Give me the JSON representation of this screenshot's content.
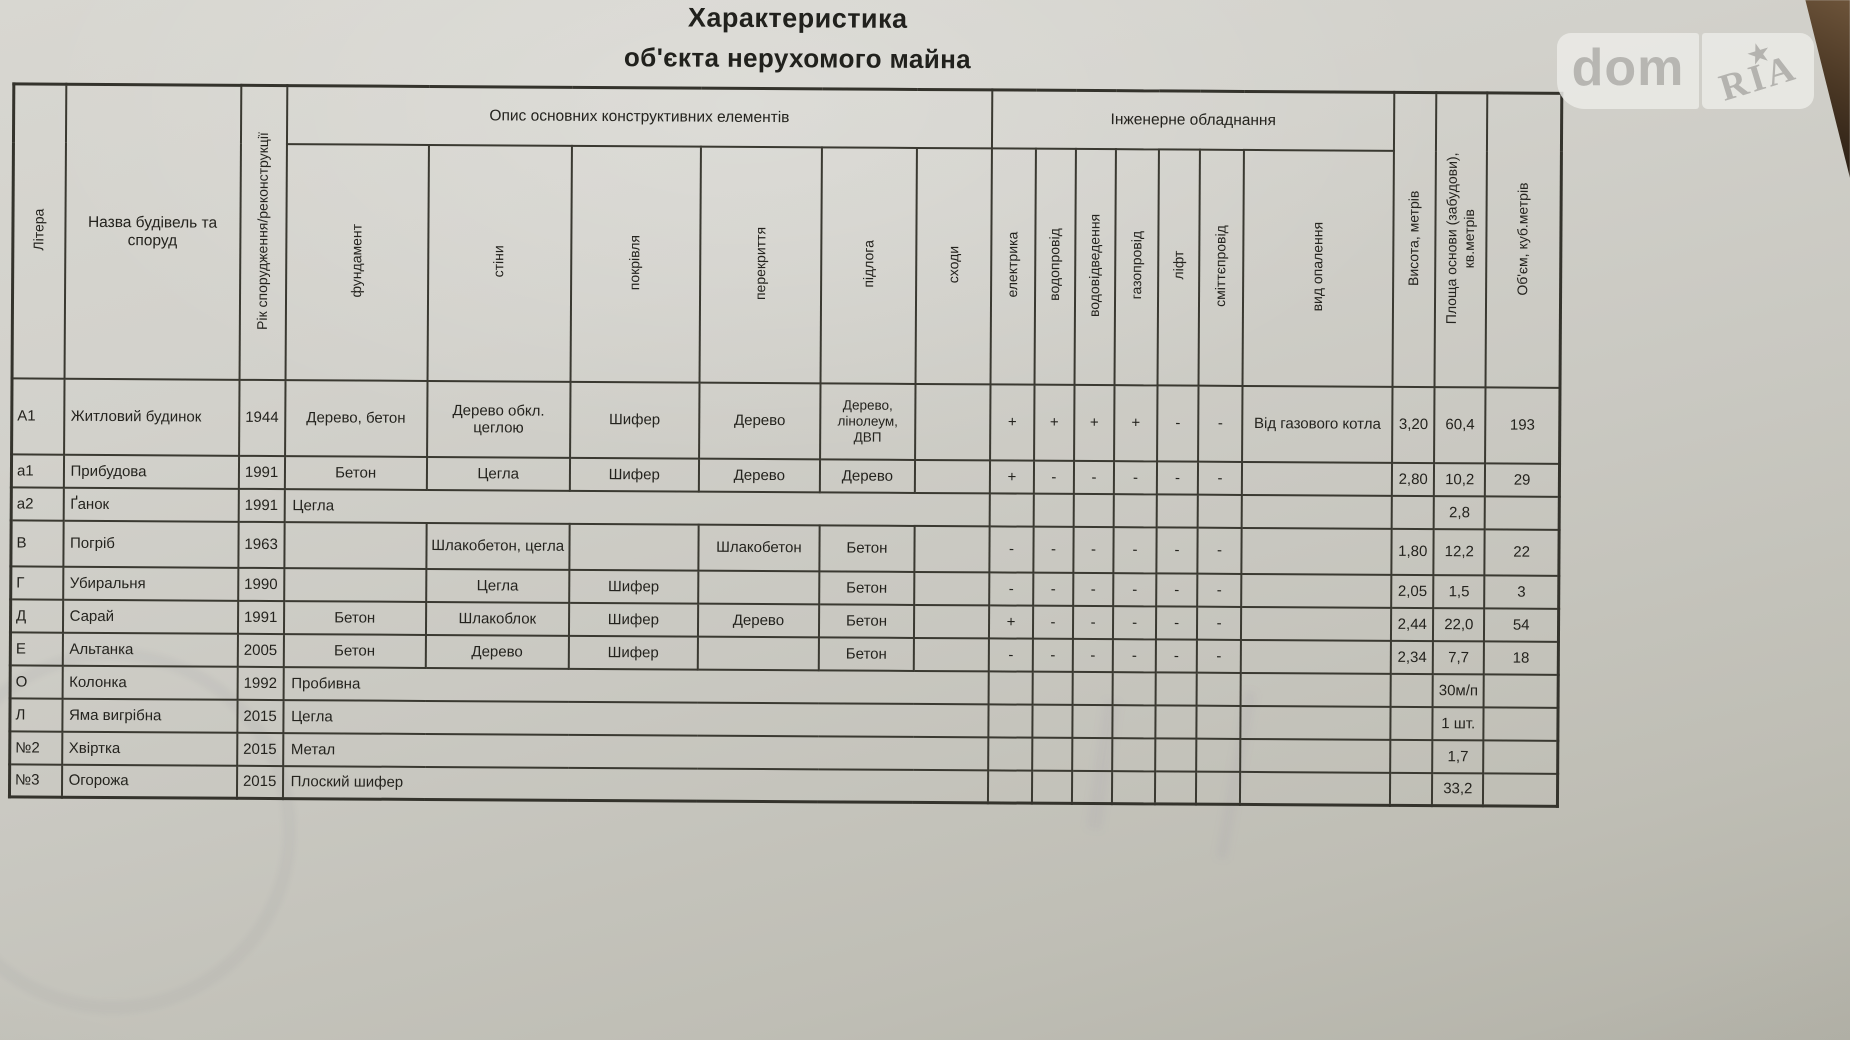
{
  "colors": {
    "paper": "#cfcec8",
    "table_border": "#3a3931",
    "ink": "#24231e",
    "watermark_grey": "#b5b4b0",
    "corner_wood": "#4a3724"
  },
  "title": {
    "line1": "Характеристика",
    "line2": "об'єкта нерухомого майна"
  },
  "watermark": {
    "left": "dom",
    "right": "RIA",
    "star_icon": "star-icon"
  },
  "table": {
    "groups": {
      "construction": "Опис основних конструктивних елементів",
      "engineering": "Інженерне обладнання"
    },
    "columns": {
      "litera": "Літера",
      "name": "Назва будівель та споруд",
      "year": "Рік спорудження/реконструкції",
      "foundation": "фундамент",
      "walls": "стіни",
      "roof": "покрівля",
      "ceiling": "перекриття",
      "floor": "підлога",
      "stairs": "сходи",
      "electricity": "електрика",
      "water": "водопровід",
      "sewerage": "водовідведення",
      "gas": "газопровід",
      "elevator": "ліфт",
      "garbage": "сміттєпровід",
      "heating": "вид опалення",
      "height": "Висота, метрів",
      "area": "Площа основи (забудови), кв.метрів",
      "volume": "Об'єм, куб.метрів"
    },
    "rows": [
      {
        "litera": "А1",
        "name": "Житловий будинок",
        "year": "1944",
        "merged": false,
        "foundation": "Дерево, бетон",
        "walls": "Дерево обкл. цеглою",
        "roof": "Шифер",
        "ceiling": "Дерево",
        "floor": "Дерево, лінолеум, ДВП",
        "stairs": "",
        "electricity": "+",
        "water": "+",
        "sewerage": "+",
        "gas": "+",
        "elevator": "-",
        "garbage": "-",
        "heating": "Від газового котла",
        "height": "3,20",
        "area": "60,4",
        "volume": "193"
      },
      {
        "litera": "а1",
        "name": "Прибудова",
        "year": "1991",
        "merged": false,
        "foundation": "Бетон",
        "walls": "Цегла",
        "roof": "Шифер",
        "ceiling": "Дерево",
        "floor": "Дерево",
        "stairs": "",
        "electricity": "+",
        "water": "-",
        "sewerage": "-",
        "gas": "-",
        "elevator": "-",
        "garbage": "-",
        "heating": "",
        "height": "2,80",
        "area": "10,2",
        "volume": "29"
      },
      {
        "litera": "а2",
        "name": "Ґанок",
        "year": "1991",
        "merged": true,
        "merged_text": "Цегла",
        "heating": "",
        "height": "",
        "area": "2,8",
        "volume": ""
      },
      {
        "litera": "В",
        "name": "Погріб",
        "year": "1963",
        "merged": false,
        "foundation": "",
        "walls": "Шлакобетон, цегла",
        "roof": "",
        "ceiling": "Шлакобетон",
        "floor": "Бетон",
        "stairs": "",
        "electricity": "-",
        "water": "-",
        "sewerage": "-",
        "gas": "-",
        "elevator": "-",
        "garbage": "-",
        "heating": "",
        "height": "1,80",
        "area": "12,2",
        "volume": "22"
      },
      {
        "litera": "Г",
        "name": "Убиральня",
        "year": "1990",
        "merged": false,
        "foundation": "",
        "walls": "Цегла",
        "roof": "Шифер",
        "ceiling": "",
        "floor": "Бетон",
        "stairs": "",
        "electricity": "-",
        "water": "-",
        "sewerage": "-",
        "gas": "-",
        "elevator": "-",
        "garbage": "-",
        "heating": "",
        "height": "2,05",
        "area": "1,5",
        "volume": "3"
      },
      {
        "litera": "Д",
        "name": "Сарай",
        "year": "1991",
        "merged": false,
        "foundation": "Бетон",
        "walls": "Шлакоблок",
        "roof": "Шифер",
        "ceiling": "Дерево",
        "floor": "Бетон",
        "stairs": "",
        "electricity": "+",
        "water": "-",
        "sewerage": "-",
        "gas": "-",
        "elevator": "-",
        "garbage": "-",
        "heating": "",
        "height": "2,44",
        "area": "22,0",
        "volume": "54"
      },
      {
        "litera": "Е",
        "name": "Альтанка",
        "year": "2005",
        "merged": false,
        "foundation": "Бетон",
        "walls": "Дерево",
        "roof": "Шифер",
        "ceiling": "",
        "floor": "Бетон",
        "stairs": "",
        "electricity": "-",
        "water": "-",
        "sewerage": "-",
        "gas": "-",
        "elevator": "-",
        "garbage": "-",
        "heating": "",
        "height": "2,34",
        "area": "7,7",
        "volume": "18"
      },
      {
        "litera": "О",
        "name": "Колонка",
        "year": "1992",
        "merged": true,
        "merged_text": "Пробивна",
        "heating": "",
        "height": "",
        "area": "30м/п",
        "volume": ""
      },
      {
        "litera": "Л",
        "name": "Яма вигрібна",
        "year": "2015",
        "merged": true,
        "merged_text": "Цегла",
        "heating": "",
        "height": "",
        "area": "1 шт.",
        "volume": ""
      },
      {
        "litera": "№2",
        "name": "Хвіртка",
        "year": "2015",
        "merged": true,
        "merged_text": "Метал",
        "heating": "",
        "height": "",
        "area": "1,7",
        "volume": ""
      },
      {
        "litera": "№3",
        "name": "Огорожа",
        "year": "2015",
        "merged": true,
        "merged_text": "Плоский шифер",
        "heating": "",
        "height": "",
        "area": "33,2",
        "volume": ""
      }
    ]
  }
}
